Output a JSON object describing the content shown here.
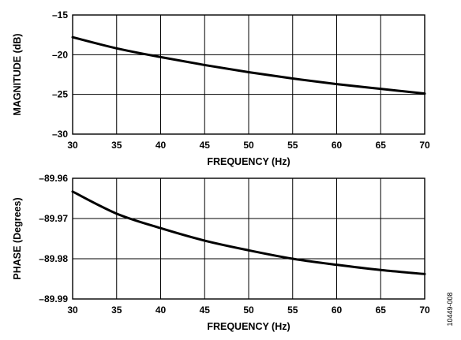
{
  "figure_id": "10449-008",
  "chart_data": [
    {
      "type": "line",
      "title": "",
      "xlabel": "FREQUENCY (Hz)",
      "ylabel": "MAGNITUDE (dB)",
      "xlim": [
        30,
        70
      ],
      "ylim": [
        -30,
        -15
      ],
      "x_ticks": [
        30,
        35,
        40,
        45,
        50,
        55,
        60,
        65,
        70
      ],
      "y_ticks": [
        -15,
        -20,
        -25,
        -30
      ],
      "x_tick_labels": [
        "30",
        "35",
        "40",
        "45",
        "50",
        "55",
        "60",
        "65",
        "70"
      ],
      "y_tick_labels": [
        "–15",
        "–20",
        "–25",
        "–30"
      ],
      "grid": true,
      "line_color": "#000000",
      "series": [
        {
          "x": [
            30,
            35,
            40,
            45,
            50,
            55,
            60,
            65,
            70
          ],
          "y": [
            -17.8,
            -19.2,
            -20.3,
            -21.3,
            -22.2,
            -23.0,
            -23.7,
            -24.3,
            -24.9
          ]
        }
      ]
    },
    {
      "type": "line",
      "title": "",
      "xlabel": "FREQUENCY (Hz)",
      "ylabel": "PHASE (Degrees)",
      "xlim": [
        30,
        70
      ],
      "ylim": [
        -89.99,
        -89.96
      ],
      "x_ticks": [
        30,
        35,
        40,
        45,
        50,
        55,
        60,
        65,
        70
      ],
      "y_ticks": [
        -89.96,
        -89.97,
        -89.98,
        -89.99
      ],
      "x_tick_labels": [
        "30",
        "35",
        "40",
        "45",
        "50",
        "55",
        "60",
        "65",
        "70"
      ],
      "y_tick_labels": [
        "–89.96",
        "–89.97",
        "–89.98",
        "–89.99"
      ],
      "grid": true,
      "line_color": "#000000",
      "series": [
        {
          "x": [
            30,
            35,
            40,
            45,
            50,
            55,
            60,
            65,
            70
          ],
          "y": [
            -89.9633,
            -89.9688,
            -89.9724,
            -89.9755,
            -89.9779,
            -89.98,
            -89.9815,
            -89.9828,
            -89.9838
          ]
        }
      ]
    }
  ]
}
